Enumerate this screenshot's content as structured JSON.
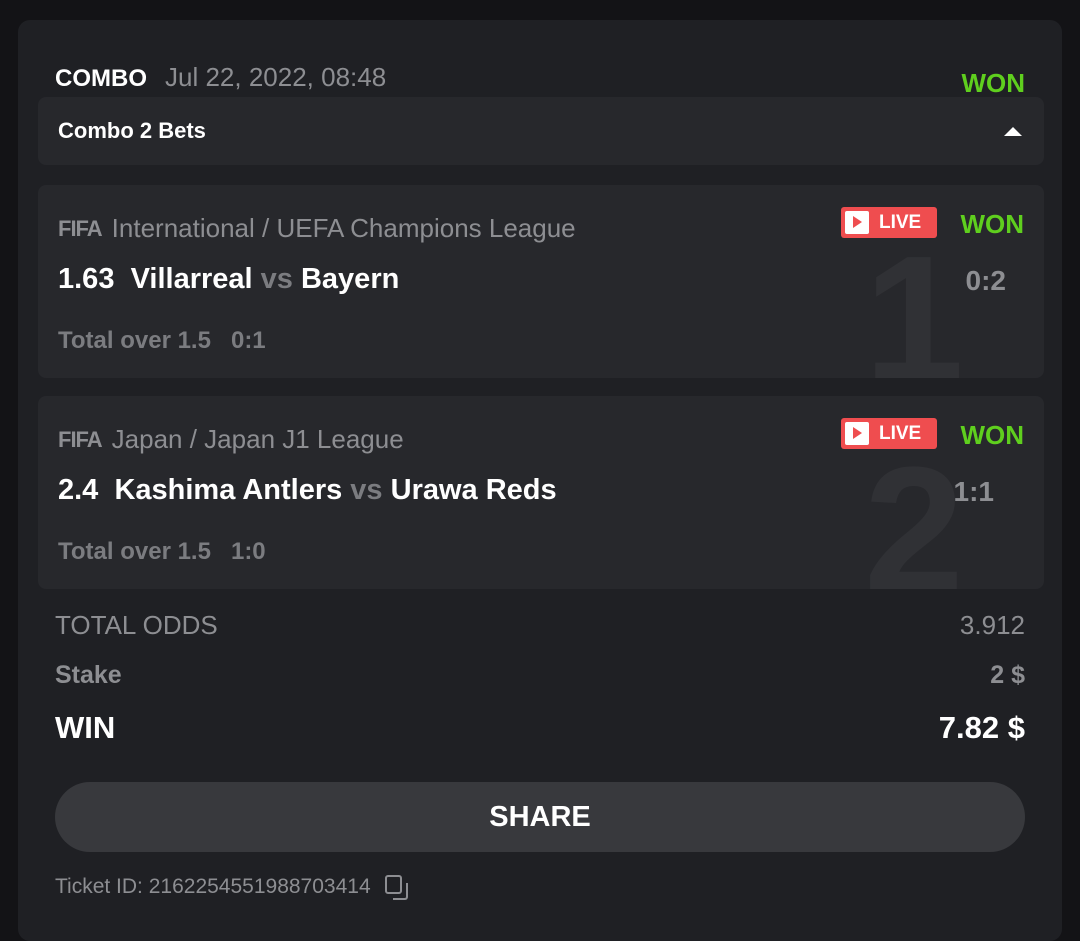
{
  "header": {
    "type": "COMBO",
    "date": "Jul 22, 2022, 08:48",
    "status": "WON",
    "status_color": "#5fcf1e"
  },
  "toggle": {
    "label": "Combo 2 Bets",
    "icon": "caret-up-icon"
  },
  "bets": [
    {
      "number": "1",
      "sport": "FIFA",
      "league": "International / UEFA Champions League",
      "live": "LIVE",
      "status": "WON",
      "odds": "1.63",
      "home": "Villarreal",
      "vs": "vs",
      "away": "Bayern",
      "score": "0:2",
      "market": "Total over 1.5",
      "market_score": "0:1"
    },
    {
      "number": "2",
      "sport": "FIFA",
      "league": "Japan / Japan J1 League",
      "live": "LIVE",
      "status": "WON",
      "odds": "2.4",
      "home": "Kashima Antlers",
      "vs": "vs",
      "away": "Urawa Reds",
      "score": "1:1",
      "market": "Total over 1.5",
      "market_score": "1:0"
    }
  ],
  "summary": {
    "total_odds_label": "TOTAL ODDS",
    "total_odds": "3.912",
    "stake_label": "Stake",
    "stake": "2 $",
    "win_label": "WIN",
    "win": "7.82 $"
  },
  "share_label": "SHARE",
  "ticket": {
    "label": "Ticket ID: 2162254551988703414",
    "icon": "copy-icon"
  }
}
